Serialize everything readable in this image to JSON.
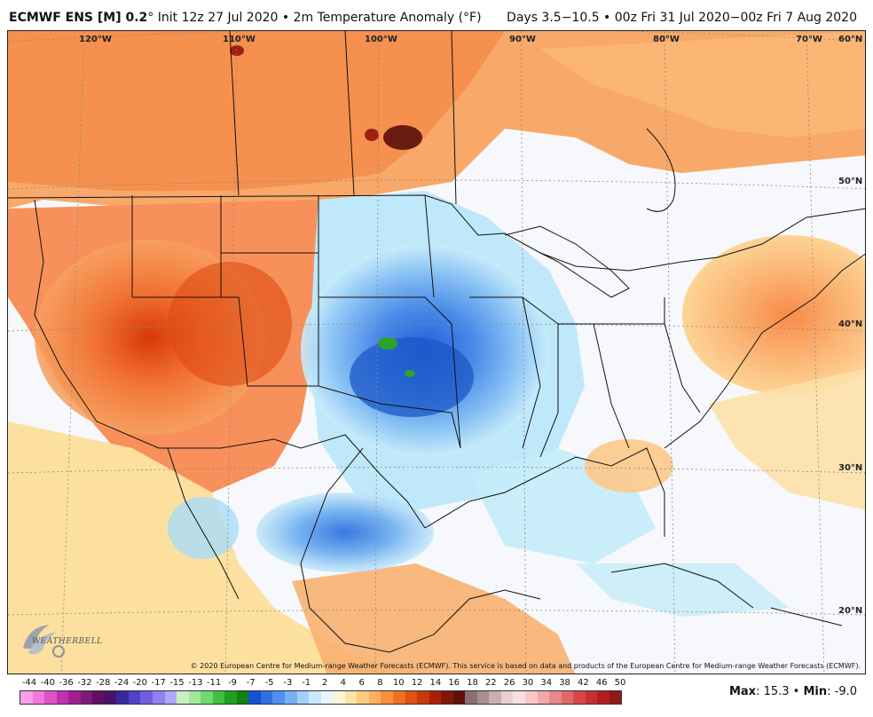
{
  "header": {
    "brand": "ECMWF ENS [M] 0.2",
    "degree": "°",
    "init": " Init 12z 27 Jul 2020 • 2m Temperature Anomaly (°F)",
    "valid": "Days 3.5−10.5 • 00z Fri 31 Jul 2020−00z Fri 7 Aug 2020"
  },
  "longitude_labels": [
    "120°W",
    "110°W",
    "100°W",
    "90°W",
    "80°W",
    "70°W"
  ],
  "latitude_labels": [
    "60°N",
    "50°N",
    "40°N",
    "30°N",
    "20°N"
  ],
  "copyright": "© 2020 European Centre for Medium-range Weather Forecasts (ECMWF). This service is based on data and products of the European Centre for Medium-range Weather Forecasts (ECMWF).",
  "logo_text": "WEATHERBELL",
  "stats": {
    "max_label": "Max",
    "max_value": ": 15.3 • ",
    "min_label": "Min",
    "min_value": ": -9.0"
  },
  "colorbar": {
    "labels": [
      "-44",
      "-40",
      "-36",
      "-32",
      "-28",
      "-24",
      "-20",
      "-17",
      "-15",
      "-13",
      "-11",
      "-9",
      "-7",
      "-5",
      "-3",
      "-1",
      "2",
      "4",
      "6",
      "8",
      "10",
      "12",
      "14",
      "16",
      "18",
      "22",
      "26",
      "30",
      "34",
      "38",
      "42",
      "46",
      "50"
    ],
    "colors": [
      "#f7a0e8",
      "#f07ad8",
      "#e050c8",
      "#c030b0",
      "#a02090",
      "#801878",
      "#601060",
      "#4a1070",
      "#3828a0",
      "#5040c8",
      "#7060e0",
      "#9080f0",
      "#b0a8f8",
      "#c8f0c0",
      "#a0e8a0",
      "#70d870",
      "#40c040",
      "#20a020",
      "#108010",
      "#1850d0",
      "#3070e0",
      "#5090f0",
      "#78b0f8",
      "#a0d0fc",
      "#c8e8fc",
      "#e8f6fd",
      "#fef4d8",
      "#fde4a8",
      "#fdcc80",
      "#fbb060",
      "#f89040",
      "#f07020",
      "#e05010",
      "#c83808",
      "#a82008",
      "#801808",
      "#601008",
      "#8a7070",
      "#a89090",
      "#c8b0b0",
      "#e8d0d0",
      "#f8e0e0",
      "#f8c8c8",
      "#f0a8a8",
      "#e88888",
      "#e06868",
      "#d84848",
      "#c83030",
      "#b02020",
      "#901818"
    ]
  }
}
